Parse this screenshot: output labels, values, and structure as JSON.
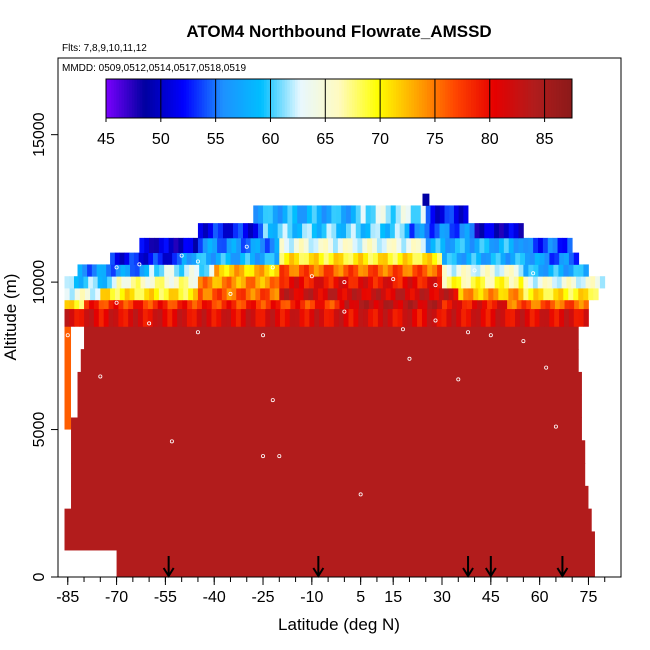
{
  "chart_data": {
    "type": "heatmap",
    "title": "ATOM4 Northbound Flowrate_AMSSD",
    "subtitle_flights": "Flts: 7,8,9,10,11,12",
    "subtitle_dates": "MMDD: 0509,0512,0514,0517,0518,0519",
    "xlabel": "Latitude (deg N)",
    "ylabel": "Altitude (m)",
    "xlim": [
      -88,
      85
    ],
    "ylim": [
      0,
      17600
    ],
    "x_ticks": [
      -85,
      -70,
      -55,
      -40,
      -25,
      -10,
      5,
      15,
      30,
      45,
      60,
      75
    ],
    "x_tick_labels": [
      "-85",
      "-70",
      "-55",
      "-40",
      "-25",
      "-10",
      "5",
      "15",
      "30",
      "45",
      "60",
      "75"
    ],
    "y_ticks": [
      0,
      5000,
      10000,
      15000
    ],
    "y_tick_labels": [
      "0",
      "5000",
      "10000",
      "15000"
    ],
    "colorbar": {
      "min": 45,
      "max": 87.5,
      "ticks": [
        45,
        50,
        55,
        60,
        65,
        70,
        75,
        80,
        85
      ],
      "tick_labels": [
        "45",
        "50",
        "55",
        "60",
        "65",
        "70",
        "75",
        "80",
        "85"
      ],
      "palette": [
        "#7a00ff",
        "#0000a0",
        "#0000ff",
        "#1e90ff",
        "#00bfff",
        "#e8f8ff",
        "#fffac0",
        "#ffff00",
        "#ffa500",
        "#ff4500",
        "#e60000",
        "#b21c1c",
        "#8b1a1a"
      ]
    },
    "arrow_latitudes": [
      -54,
      -8,
      38,
      45,
      67
    ],
    "field_profile": {
      "lat_left_edge": [
        -85,
        -86,
        -86,
        -84,
        -84,
        -84,
        -84,
        -82,
        -82,
        -81,
        -80
      ],
      "lat_right_edge": [
        77,
        77,
        76,
        75,
        74,
        74,
        73,
        73,
        73,
        72,
        72
      ],
      "note": "dominant values 83-86 below ~9000 m; decreasing to 50-65 at 11000-12500 m"
    },
    "field_rows": [
      {
        "alt": [
          8500,
          9100
        ],
        "segments": [
          [
            -86,
            75,
            81
          ]
        ]
      },
      {
        "alt": [
          9100,
          9400
        ],
        "segments": [
          [
            -86,
            -80,
            70
          ],
          [
            -80,
            0,
            78
          ],
          [
            0,
            30,
            83
          ],
          [
            30,
            50,
            80
          ],
          [
            50,
            75,
            76
          ]
        ]
      },
      {
        "alt": [
          9400,
          9800
        ],
        "segments": [
          [
            -86,
            -75,
            64
          ],
          [
            -75,
            -45,
            70
          ],
          [
            -45,
            -20,
            76
          ],
          [
            -20,
            35,
            82
          ],
          [
            35,
            55,
            73
          ],
          [
            55,
            78,
            70
          ]
        ]
      },
      {
        "alt": [
          9800,
          10200
        ],
        "segments": [
          [
            -86,
            -70,
            60
          ],
          [
            -70,
            -45,
            66
          ],
          [
            -45,
            -20,
            74
          ],
          [
            -20,
            30,
            80
          ],
          [
            30,
            55,
            68
          ],
          [
            55,
            80,
            64
          ]
        ]
      },
      {
        "alt": [
          10200,
          10600
        ],
        "segments": [
          [
            -82,
            -60,
            56
          ],
          [
            -60,
            -40,
            62
          ],
          [
            -40,
            -20,
            72
          ],
          [
            -20,
            30,
            76
          ],
          [
            30,
            55,
            64
          ],
          [
            55,
            75,
            58
          ]
        ]
      },
      {
        "alt": [
          10600,
          11000
        ],
        "segments": [
          [
            -72,
            -50,
            52
          ],
          [
            -50,
            -20,
            58
          ],
          [
            -20,
            30,
            70
          ],
          [
            30,
            60,
            58
          ],
          [
            60,
            72,
            55
          ]
        ]
      },
      {
        "alt": [
          11000,
          11500
        ],
        "segments": [
          [
            -63,
            -45,
            50
          ],
          [
            -45,
            -20,
            56
          ],
          [
            -20,
            25,
            64
          ],
          [
            25,
            55,
            58
          ],
          [
            55,
            70,
            54
          ]
        ]
      },
      {
        "alt": [
          11500,
          12000
        ],
        "segments": [
          [
            -45,
            -25,
            52
          ],
          [
            -25,
            20,
            60
          ],
          [
            20,
            40,
            55
          ],
          [
            40,
            55,
            50
          ]
        ]
      },
      {
        "alt": [
          12000,
          12600
        ],
        "segments": [
          [
            -28,
            5,
            58
          ],
          [
            5,
            25,
            62
          ],
          [
            25,
            38,
            52
          ]
        ]
      },
      {
        "alt": [
          12600,
          13000
        ],
        "segments": [
          [
            24,
            26,
            48
          ]
        ]
      }
    ],
    "white_markers": [
      [
        -70,
        10500
      ],
      [
        -63,
        10600
      ],
      [
        -50,
        10900
      ],
      [
        -45,
        10700
      ],
      [
        -30,
        11200
      ],
      [
        -22,
        10500
      ],
      [
        -10,
        10200
      ],
      [
        0,
        10000
      ],
      [
        15,
        10100
      ],
      [
        28,
        9900
      ],
      [
        40,
        10400
      ],
      [
        58,
        10300
      ],
      [
        -60,
        8600
      ],
      [
        -45,
        8300
      ],
      [
        -25,
        8200
      ],
      [
        0,
        9000
      ],
      [
        18,
        8400
      ],
      [
        28,
        8700
      ],
      [
        38,
        8300
      ],
      [
        55,
        8000
      ],
      [
        -75,
        6800
      ],
      [
        -22,
        6000
      ],
      [
        20,
        7400
      ],
      [
        35,
        6700
      ],
      [
        62,
        7100
      ],
      [
        -53,
        4600
      ],
      [
        -25,
        4100
      ],
      [
        -20,
        4100
      ],
      [
        5,
        2800
      ],
      [
        65,
        5100
      ],
      [
        -85,
        8200
      ],
      [
        -70,
        9300
      ],
      [
        74,
        7900
      ],
      [
        -35,
        9600
      ],
      [
        45,
        8200
      ]
    ]
  }
}
